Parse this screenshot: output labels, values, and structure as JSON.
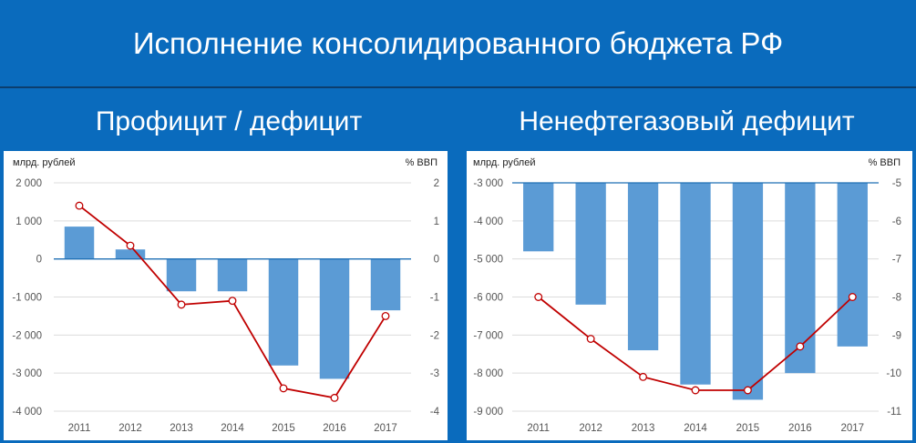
{
  "header": {
    "title": "Исполнение консолидированного бюджета РФ"
  },
  "chart_data": [
    {
      "type": "bar",
      "title": "Профицит / дефицит",
      "ylabel_left": "млрд. рублей",
      "ylabel_right": "% ВВП",
      "categories": [
        "2011",
        "2012",
        "2013",
        "2014",
        "2015",
        "2016",
        "2017"
      ],
      "ylim_left": [
        -4000,
        2000
      ],
      "yticks_left": [
        2000,
        1000,
        0,
        -1000,
        -2000,
        -3000,
        -4000
      ],
      "ytick_labels_left": [
        "2 000",
        "1 000",
        "0",
        "-1 000",
        "-2 000",
        "-3 000",
        "-4 000"
      ],
      "ylim_right": [
        -4,
        2
      ],
      "yticks_right": [
        2,
        1,
        0,
        -1,
        -2,
        -3,
        -4
      ],
      "ytick_labels_right": [
        "2",
        "1",
        "0",
        "-1",
        "-2",
        "-3",
        "-4"
      ],
      "series": [
        {
          "type": "bar",
          "axis": "left",
          "values": [
            850,
            250,
            -850,
            -850,
            -2800,
            -3150,
            -1350
          ]
        },
        {
          "type": "line",
          "axis": "right",
          "values": [
            1.4,
            0.35,
            -1.2,
            -1.1,
            -3.4,
            -3.65,
            -1.5
          ]
        }
      ],
      "colors": {
        "bar": "#5b9bd5",
        "line": "#c00000",
        "marker_fill": "#ffffff",
        "zero_line": "#1f6fb5"
      },
      "grid": true
    },
    {
      "type": "bar",
      "title": "Ненефтегазовый дефицит",
      "ylabel_left": "млрд. рублей",
      "ylabel_right": "% ВВП",
      "categories": [
        "2011",
        "2012",
        "2013",
        "2014",
        "2015",
        "2016",
        "2017"
      ],
      "ylim_left": [
        -9000,
        -3000
      ],
      "yticks_left": [
        -3000,
        -4000,
        -5000,
        -6000,
        -7000,
        -8000,
        -9000
      ],
      "ytick_labels_left": [
        "-3 000",
        "-4 000",
        "-5 000",
        "-6 000",
        "-7 000",
        "-8 000",
        "-9 000"
      ],
      "ylim_right": [
        -11,
        -5
      ],
      "yticks_right": [
        -5,
        -6,
        -7,
        -8,
        -9,
        -10,
        -11
      ],
      "ytick_labels_right": [
        "-5",
        "-6",
        "-7",
        "-8",
        "-9",
        "-10",
        "-11"
      ],
      "series": [
        {
          "type": "bar",
          "axis": "left",
          "values": [
            -4800,
            -6200,
            -7400,
            -8300,
            -8700,
            -8000,
            -7300
          ]
        },
        {
          "type": "line",
          "axis": "right",
          "values": [
            -8.0,
            -9.1,
            -10.1,
            -10.45,
            -10.45,
            -9.3,
            -8.0
          ]
        }
      ],
      "colors": {
        "bar": "#5b9bd5",
        "line": "#c00000",
        "marker_fill": "#ffffff",
        "zero_line": "#1f6fb5"
      },
      "grid": true
    }
  ]
}
